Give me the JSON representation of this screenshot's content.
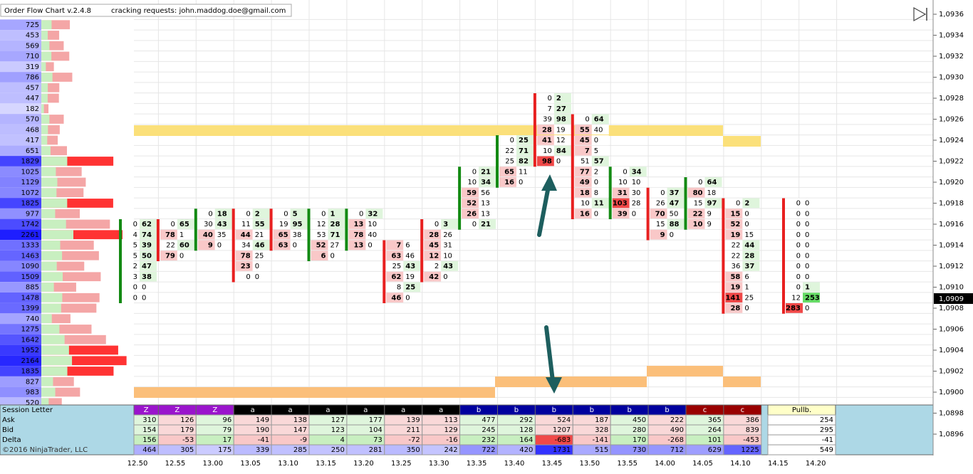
{
  "header": {
    "title": "Order Flow Chart v.2.4.8",
    "note": "cracking requests: john.maddog.doe@gmail.com"
  },
  "price_axis": [
    "1,0936",
    "1,0934",
    "1,0932",
    "1,0930",
    "1,0928",
    "1,0926",
    "1,0924",
    "1,0922",
    "1,0920",
    "1,0918",
    "1,0916",
    "1,0914",
    "1,0912",
    "1,0910",
    "1,0908",
    "1,0906",
    "1,0904",
    "1,0902",
    "1,0900",
    "1,0898",
    "1,0896"
  ],
  "last_price": "1,0909",
  "time_axis": [
    "12.50",
    "12.55",
    "13.00",
    "13.05",
    "13.10",
    "13.15",
    "13.20",
    "13.25",
    "13.30",
    "13.35",
    "13.40",
    "13.45",
    "13.50",
    "13.55",
    "14.00",
    "14.05",
    "14.10",
    "14.15",
    "14.20"
  ],
  "volume_profile": {
    "top_price": 1.0935,
    "values": [
      725,
      453,
      569,
      710,
      319,
      786,
      457,
      447,
      182,
      570,
      468,
      417,
      651,
      1829,
      1025,
      1129,
      1072,
      1825,
      977,
      1742,
      2261,
      1333,
      1463,
      1090,
      1509,
      885,
      1478,
      1399,
      740,
      1275,
      1642,
      1952,
      2164,
      1835,
      827,
      983,
      520
    ]
  },
  "bars": [
    {
      "high": 1.0916,
      "cells": [
        [
          0,
          62
        ],
        [
          4,
          74
        ],
        [
          5,
          39
        ],
        [
          5,
          50
        ],
        [
          2,
          47
        ],
        [
          3,
          38
        ],
        [
          0,
          0
        ],
        [
          0,
          0
        ]
      ]
    },
    {
      "high": 1.0916,
      "cells": [
        [
          0,
          65
        ],
        [
          78,
          1
        ],
        [
          22,
          60
        ],
        [
          79,
          0
        ]
      ]
    },
    {
      "high": 1.0917,
      "cells": [
        [
          0,
          18
        ],
        [
          30,
          43
        ],
        [
          40,
          35
        ],
        [
          9,
          0
        ]
      ]
    },
    {
      "high": 1.0917,
      "cells": [
        [
          0,
          2
        ],
        [
          11,
          55
        ],
        [
          44,
          21
        ],
        [
          34,
          46
        ],
        [
          78,
          25
        ],
        [
          23,
          0
        ],
        [
          0,
          0
        ]
      ]
    },
    {
      "high": 1.0917,
      "cells": [
        [
          0,
          5
        ],
        [
          19,
          95
        ],
        [
          65,
          38
        ],
        [
          63,
          0
        ]
      ]
    },
    {
      "high": 1.0917,
      "cells": [
        [
          0,
          1
        ],
        [
          12,
          28
        ],
        [
          53,
          71
        ],
        [
          52,
          27
        ],
        [
          6,
          0
        ]
      ]
    },
    {
      "high": 1.0917,
      "cells": [
        [
          0,
          32
        ],
        [
          13,
          10
        ],
        [
          78,
          40
        ],
        [
          13,
          0
        ]
      ]
    },
    {
      "high": 1.0914,
      "cells": [
        [
          7,
          6
        ],
        [
          63,
          46
        ],
        [
          25,
          43
        ],
        [
          62,
          19
        ],
        [
          8,
          25
        ],
        [
          46,
          0
        ]
      ]
    },
    {
      "high": 1.0916,
      "cells": [
        [
          0,
          3
        ],
        [
          28,
          26
        ],
        [
          45,
          31
        ],
        [
          12,
          10
        ],
        [
          2,
          43
        ],
        [
          42,
          0
        ]
      ]
    },
    {
      "high": 1.0921,
      "cells": [
        [
          0,
          21
        ],
        [
          10,
          34
        ],
        [
          59,
          56
        ],
        [
          52,
          13
        ],
        [
          26,
          13
        ],
        [
          0,
          21
        ]
      ]
    },
    {
      "high": 1.0924,
      "cells": [
        [
          0,
          25
        ],
        [
          22,
          71
        ],
        [
          25,
          82
        ],
        [
          65,
          11
        ],
        [
          16,
          0
        ]
      ]
    },
    {
      "high": 1.0928,
      "cells": [
        [
          0,
          2
        ],
        [
          7,
          27
        ],
        [
          39,
          98
        ],
        [
          28,
          19
        ],
        [
          41,
          12
        ],
        [
          10,
          84
        ],
        [
          98,
          0
        ]
      ]
    },
    {
      "high": 1.0926,
      "cells": [
        [
          0,
          64
        ],
        [
          55,
          40
        ],
        [
          45,
          0
        ],
        [
          7,
          5
        ],
        [
          51,
          57
        ],
        [
          77,
          2
        ],
        [
          49,
          0
        ],
        [
          18,
          8
        ],
        [
          10,
          11
        ],
        [
          16,
          0
        ]
      ]
    },
    {
      "high": 1.0921,
      "cells": [
        [
          0,
          34
        ],
        [
          10,
          10
        ],
        [
          31,
          30
        ],
        [
          103,
          28
        ],
        [
          39,
          0
        ]
      ]
    },
    {
      "high": 1.0919,
      "cells": [
        [
          0,
          37
        ],
        [
          26,
          47
        ],
        [
          70,
          50
        ],
        [
          15,
          88
        ],
        [
          9,
          0
        ]
      ]
    },
    {
      "high": 1.092,
      "cells": [
        [
          0,
          64
        ],
        [
          80,
          18
        ],
        [
          15,
          97
        ],
        [
          22,
          9
        ],
        [
          10,
          9
        ]
      ]
    },
    {
      "high": 1.0918,
      "cells": [
        [
          0,
          2
        ],
        [
          15,
          0
        ],
        [
          52,
          0
        ],
        [
          19,
          15
        ],
        [
          22,
          44
        ],
        [
          22,
          28
        ],
        [
          36,
          37
        ],
        [
          58,
          6
        ],
        [
          19,
          1
        ],
        [
          141,
          25
        ],
        [
          28,
          0
        ]
      ]
    },
    {
      "high": 1.0918,
      "cells": [
        [
          0,
          0
        ],
        [
          0,
          0
        ],
        [
          0,
          0
        ],
        [
          0,
          0
        ],
        [
          0,
          0
        ],
        [
          0,
          0
        ],
        [
          0,
          0
        ],
        [
          0,
          0
        ],
        [
          0,
          1
        ],
        [
          12,
          253
        ],
        [
          283,
          0
        ]
      ]
    }
  ],
  "table": {
    "row_labels": [
      "Session Letter",
      "Ask",
      "Bid",
      "Delta"
    ],
    "columns": [
      {
        "letter": "Z",
        "ask": 310,
        "bid": 154,
        "delta": 156,
        "volume": 464
      },
      {
        "letter": "Z",
        "ask": 126,
        "bid": 179,
        "delta": -53,
        "volume": 305
      },
      {
        "letter": "Z",
        "ask": 96,
        "bid": 79,
        "delta": 17,
        "volume": 175
      },
      {
        "letter": "a",
        "ask": 149,
        "bid": 190,
        "delta": -41,
        "volume": 339
      },
      {
        "letter": "a",
        "ask": 138,
        "bid": 147,
        "delta": -9,
        "volume": 285
      },
      {
        "letter": "a",
        "ask": 127,
        "bid": 123,
        "delta": 4,
        "volume": 250
      },
      {
        "letter": "a",
        "ask": 177,
        "bid": 104,
        "delta": 73,
        "volume": 281
      },
      {
        "letter": "a",
        "ask": 139,
        "bid": 211,
        "delta": -72,
        "volume": 350
      },
      {
        "letter": "a",
        "ask": 113,
        "bid": 129,
        "delta": -16,
        "volume": 242
      },
      {
        "letter": "b",
        "ask": 477,
        "bid": 245,
        "delta": 232,
        "volume": 722
      },
      {
        "letter": "b",
        "ask": 292,
        "bid": 128,
        "delta": 164,
        "volume": 420
      },
      {
        "letter": "b",
        "ask": 524,
        "bid": 1207,
        "delta": -683,
        "volume": 1731
      },
      {
        "letter": "b",
        "ask": 187,
        "bid": 328,
        "delta": -141,
        "volume": 515
      },
      {
        "letter": "b",
        "ask": 450,
        "bid": 280,
        "delta": 170,
        "volume": 730
      },
      {
        "letter": "b",
        "ask": 222,
        "bid": 490,
        "delta": -268,
        "volume": 712
      },
      {
        "letter": "c",
        "ask": 365,
        "bid": 264,
        "delta": 101,
        "volume": 629
      },
      {
        "letter": "c",
        "ask": 386,
        "bid": 839,
        "delta": -453,
        "volume": 1225
      }
    ],
    "pullback": {
      "letter": "Pullb.",
      "ask": 254,
      "bid": 295,
      "delta": -41,
      "volume": 549
    }
  },
  "copyright": "©2016 NinjaTrader, LLC"
}
